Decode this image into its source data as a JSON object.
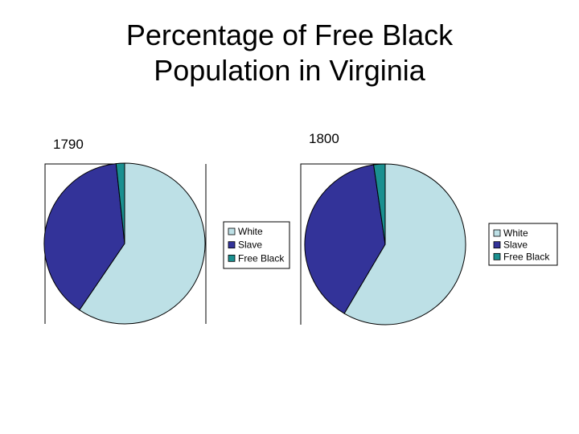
{
  "slide": {
    "title_line1": "Percentage of Free Black",
    "title_line2": "Population in Virginia"
  },
  "colors": {
    "White": "#bde0e6",
    "Slave": "#333399",
    "Free Black": "#1a9090",
    "outline": "#000000"
  },
  "chart_data": [
    {
      "type": "pie",
      "label": "1790",
      "categories": [
        "White",
        "Slave",
        "Free Black"
      ],
      "values": [
        59.5,
        38.8,
        1.7
      ],
      "unit": "percent (estimated)",
      "legend": "right"
    },
    {
      "type": "pie",
      "label": "1800",
      "categories": [
        "White",
        "Slave",
        "Free Black"
      ],
      "values": [
        58.5,
        39.2,
        2.3
      ],
      "unit": "percent (estimated)",
      "legend": "right"
    }
  ]
}
